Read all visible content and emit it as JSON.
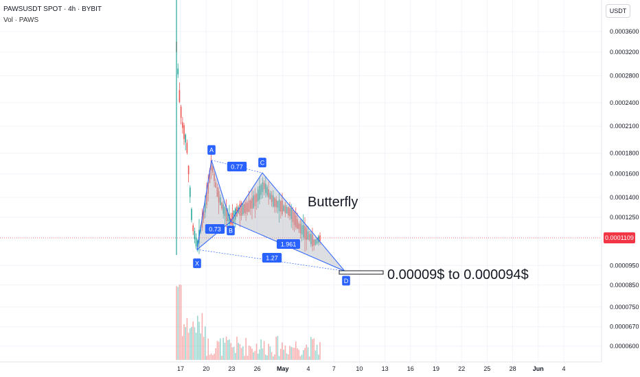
{
  "header": {
    "symbol_line": "PAWSUSDT SPOT · 4h · BYBIT",
    "volume_line": "Vol · PAWS",
    "currency_button": "USDT"
  },
  "annotations": {
    "pattern_name": "Butterfly",
    "target_text": "0.00009$ to 0.000094$"
  },
  "current_price": "0.0001109",
  "colors": {
    "up": "#26a69a",
    "down": "#ef5350",
    "pattern_fill": "#b2b5be",
    "pattern_line": "#2962ff",
    "current_price_line": "#f23645"
  },
  "chart_data": {
    "type": "candlestick",
    "y_scale": "log",
    "y_ticks": [
      "0.0003600",
      "0.0003200",
      "0.0002800",
      "0.0002400",
      "0.0002100",
      "0.0001800",
      "0.0001600",
      "0.0001400",
      "0.0001250",
      "0.0001109",
      "0.0000950",
      "0.0000850",
      "0.0000750",
      "0.0000670",
      "0.0000600"
    ],
    "x_ticks": [
      "17",
      "20",
      "23",
      "26",
      "May",
      "4",
      "7",
      "10",
      "13",
      "16",
      "19",
      "22",
      "25",
      "28",
      "Jun",
      "4"
    ],
    "harmonic_pattern": {
      "name": "Butterfly",
      "points": [
        {
          "label": "X",
          "price": 0.000104
        },
        {
          "label": "A",
          "price": 0.000173
        },
        {
          "label": "B",
          "price": 0.000122
        },
        {
          "label": "C",
          "price": 0.000161
        },
        {
          "label": "D",
          "price": 9.2e-05
        }
      ],
      "ratios": [
        {
          "label": "0.77",
          "between": "X-B"
        },
        {
          "label": "0.73",
          "between": "A-C"
        },
        {
          "label": "1.961",
          "between": "B-D"
        },
        {
          "label": "1.27",
          "between": "X-D"
        }
      ]
    },
    "target_zone": {
      "low": 9e-05,
      "high": 9.4e-05
    }
  }
}
